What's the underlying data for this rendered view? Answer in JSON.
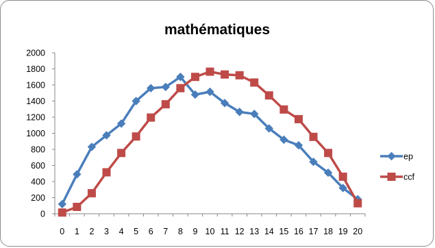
{
  "chart_data": {
    "type": "line",
    "title": "mathématiques",
    "xlabel": "",
    "ylabel": "",
    "x": [
      0,
      1,
      2,
      3,
      4,
      5,
      6,
      7,
      8,
      9,
      10,
      11,
      12,
      13,
      14,
      15,
      16,
      17,
      18,
      19,
      20
    ],
    "ylim": [
      0,
      2000
    ],
    "yticks": [
      0,
      200,
      400,
      600,
      800,
      1000,
      1200,
      1400,
      1600,
      1800,
      2000
    ],
    "grid": false,
    "legend_position": "right",
    "series": [
      {
        "name": "ep",
        "color": "#4a7ebb",
        "marker": "diamond",
        "values": [
          120,
          490,
          830,
          975,
          1120,
          1400,
          1560,
          1575,
          1700,
          1480,
          1515,
          1375,
          1265,
          1240,
          1060,
          920,
          850,
          645,
          510,
          320,
          180
        ]
      },
      {
        "name": "ccf",
        "color": "#be4b48",
        "marker": "square",
        "values": [
          15,
          85,
          255,
          515,
          755,
          960,
          1195,
          1360,
          1560,
          1700,
          1765,
          1730,
          1720,
          1630,
          1470,
          1295,
          1175,
          955,
          755,
          460,
          130
        ]
      }
    ]
  }
}
